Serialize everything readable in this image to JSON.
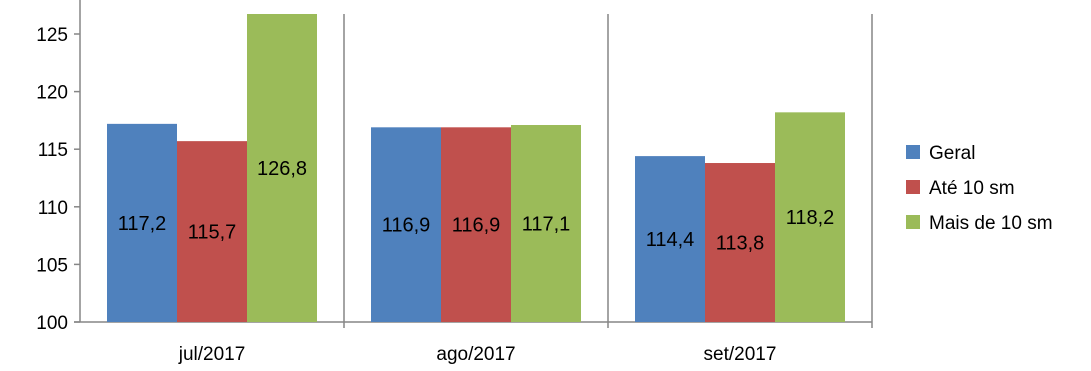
{
  "chart_data": {
    "type": "bar",
    "categories": [
      "jul/2017",
      "ago/2017",
      "set/2017"
    ],
    "series": [
      {
        "name": "Geral",
        "color": "#4F81BD",
        "values": [
          117.2,
          116.9,
          114.4
        ],
        "labels": [
          "117,2",
          "116,9",
          "114,4"
        ]
      },
      {
        "name": "Até 10 sm",
        "color": "#C0504D",
        "values": [
          115.7,
          116.9,
          113.8
        ],
        "labels": [
          "115,7",
          "116,9",
          "113,8"
        ]
      },
      {
        "name": "Mais de 10 sm",
        "color": "#9BBB59",
        "values": [
          126.8,
          117.1,
          118.2
        ],
        "labels": [
          "126,8",
          "117,1",
          "118,2"
        ]
      }
    ],
    "ylim": [
      100,
      126
    ],
    "yticks": [
      "100",
      "105",
      "110",
      "115",
      "120",
      "125"
    ],
    "title": "",
    "xlabel": "",
    "ylabel": "",
    "legend_position": "right",
    "grid": false,
    "category_separators": true
  }
}
